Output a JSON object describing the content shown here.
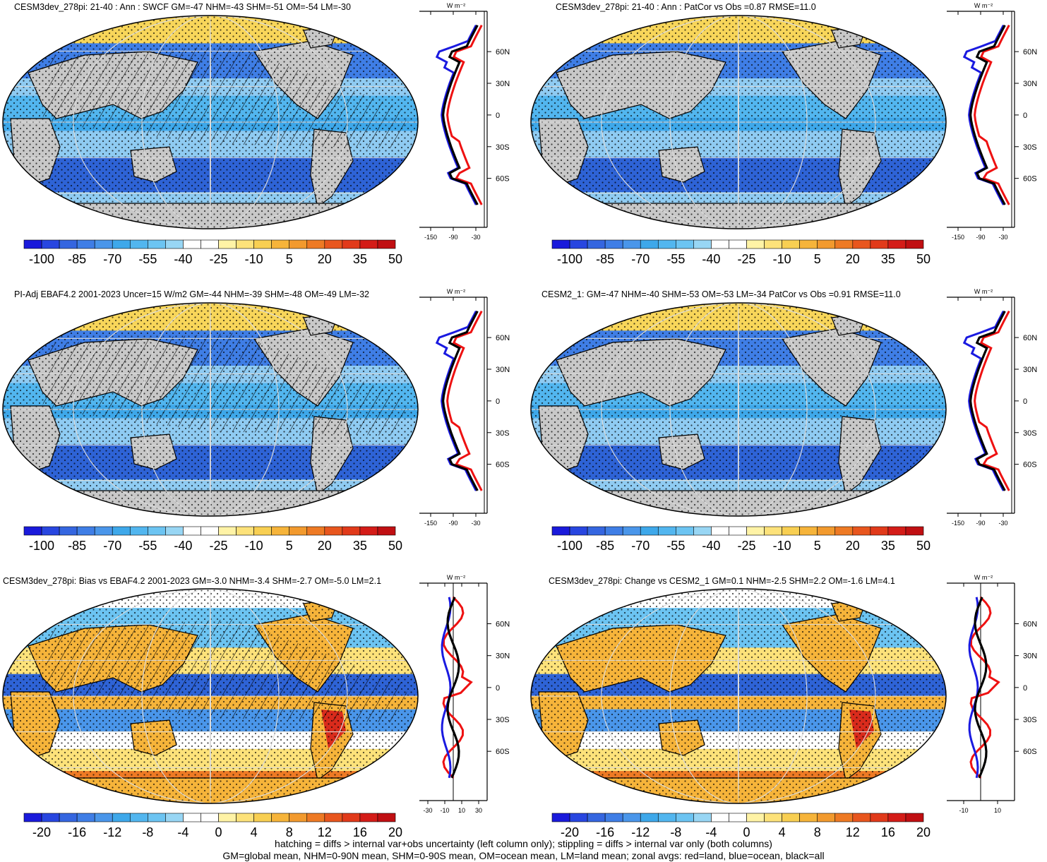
{
  "colors": {
    "land_gray": "#c8c8c8",
    "ocean_mid": "#4f9ee8",
    "ocean_deep": "#2e63d6",
    "ocean_light": "#8fcbf2",
    "yellow": "#f8d65a",
    "orange": "#f29a2e",
    "red": "#d92b1c",
    "zonal_land": "#ee1111",
    "zonal_ocean": "#1a1ae0",
    "zonal_all": "#000000"
  },
  "panels": [
    {
      "id": "p1",
      "title": "CESM3dev_278pi: 21-40 : Ann : SWCF GM=-47 NHM=-43 SHM=-51 OM=-54 LM=-30",
      "field": "abs",
      "hatch": true,
      "zonal": {
        "unit_label": "W m⁻²",
        "x_ticks": [
          "-150",
          "-90",
          "-30"
        ],
        "lat_ticks": [
          "60N",
          "30N",
          "0",
          "30S",
          "60S"
        ]
      },
      "colorbar": {
        "labels": [
          "-100",
          "-85",
          "-70",
          "-55",
          "-40",
          "-25",
          "-10",
          "5",
          "20",
          "35",
          "50"
        ]
      }
    },
    {
      "id": "p2",
      "title": "CESM3dev_278pi: 21-40 : Ann : PatCor vs Obs =0.87 RMSE=11.0",
      "field": "abs",
      "hatch": false,
      "zonal": {
        "unit_label": "W m⁻²",
        "x_ticks": [
          "-150",
          "-90",
          "-30"
        ],
        "lat_ticks": [
          "60N",
          "30N",
          "0",
          "30S",
          "60S"
        ]
      },
      "colorbar": {
        "labels": [
          "-100",
          "-85",
          "-70",
          "-55",
          "-40",
          "-25",
          "-10",
          "5",
          "20",
          "35",
          "50"
        ]
      }
    },
    {
      "id": "p3",
      "title": "PI-Adj EBAF4.2 2001-2023 Uncer=15 W/m2 GM=-44 NHM=-39 SHM=-48 OM=-49 LM=-32",
      "field": "abs",
      "hatch": true,
      "zonal": {
        "unit_label": "W m⁻²",
        "x_ticks": [
          "-150",
          "-90",
          "-30"
        ],
        "lat_ticks": [
          "60N",
          "30N",
          "0",
          "30S",
          "60S"
        ]
      },
      "colorbar": {
        "labels": [
          "-100",
          "-85",
          "-70",
          "-55",
          "-40",
          "-25",
          "-10",
          "5",
          "20",
          "35",
          "50"
        ]
      }
    },
    {
      "id": "p4",
      "title": "CESM2_1: GM=-47 NHM=-40 SHM=-53 OM=-53 LM=-34 PatCor vs Obs =0.91 RMSE=11.0",
      "field": "abs",
      "hatch": false,
      "zonal": {
        "unit_label": "W m⁻²",
        "x_ticks": [
          "-150",
          "-90",
          "-30"
        ],
        "lat_ticks": [
          "60N",
          "30N",
          "0",
          "30S",
          "60S"
        ]
      },
      "colorbar": {
        "labels": [
          "-100",
          "-85",
          "-70",
          "-55",
          "-40",
          "-25",
          "-10",
          "5",
          "20",
          "35",
          "50"
        ]
      }
    },
    {
      "id": "p5",
      "title": "CESM3dev_278pi: Bias vs EBAF4.2 2001-2023 GM=-3.0 NHM=-3.4 SHM=-2.7 OM=-5.0 LM=2.1",
      "field": "diff",
      "hatch": true,
      "zonal": {
        "unit_label": "W m⁻²",
        "x_ticks": [
          "-30",
          "-10",
          "10",
          "30"
        ],
        "lat_ticks": [
          "60N",
          "30N",
          "0",
          "30S",
          "60S"
        ]
      },
      "colorbar": {
        "labels": [
          "-20",
          "-16",
          "-12",
          "-8",
          "-4",
          "0",
          "4",
          "8",
          "12",
          "16",
          "20"
        ]
      }
    },
    {
      "id": "p6",
      "title": "CESM3dev_278pi: Change vs CESM2_1 GM=0.1 NHM=-2.5 SHM=2.2 OM=-1.6 LM=4.1",
      "field": "diff",
      "hatch": false,
      "zonal": {
        "unit_label": "W m⁻²",
        "x_ticks": [
          "-10",
          "10"
        ],
        "lat_ticks": [
          "60N",
          "30N",
          "0",
          "30S",
          "60S"
        ]
      },
      "colorbar": {
        "labels": [
          "-20",
          "-16",
          "-12",
          "-8",
          "-4",
          "0",
          "4",
          "8",
          "12",
          "16",
          "20"
        ]
      }
    }
  ],
  "colorbar_abs_colors": [
    "#1a1adb",
    "#2846e0",
    "#3566e0",
    "#3f7ee6",
    "#4a96ea",
    "#3ea8ea",
    "#52b6ef",
    "#6cc4f2",
    "#98d6f4",
    "#ffffff",
    "#ffffff",
    "#fff3a6",
    "#fde27a",
    "#f8cf52",
    "#f6b43a",
    "#f29a2e",
    "#ee7a24",
    "#e8561e",
    "#e13a1a",
    "#d41c18",
    "#c00f12"
  ],
  "colorbar_diff_colors": [
    "#1a1adb",
    "#2846e0",
    "#3566e0",
    "#3f7ee6",
    "#4a96ea",
    "#3ea8ea",
    "#52b6ef",
    "#6cc4f2",
    "#98d6f4",
    "#ffffff",
    "#ffffff",
    "#fff3a6",
    "#fde27a",
    "#f8cf52",
    "#f6b43a",
    "#f29a2e",
    "#ee7a24",
    "#e8561e",
    "#e13a1a",
    "#d41c18",
    "#c00f12"
  ],
  "footer": {
    "line1": "hatching = diffs > internal var+obs uncertainty (left column only); stippling = diffs > internal var only (both columns)",
    "line2": "GM=global mean, NHM=0-90N mean, SHM=0-90S mean, OM=ocean mean, LM=land mean; zonal avgs: red=land, blue=ocean, black=all"
  }
}
